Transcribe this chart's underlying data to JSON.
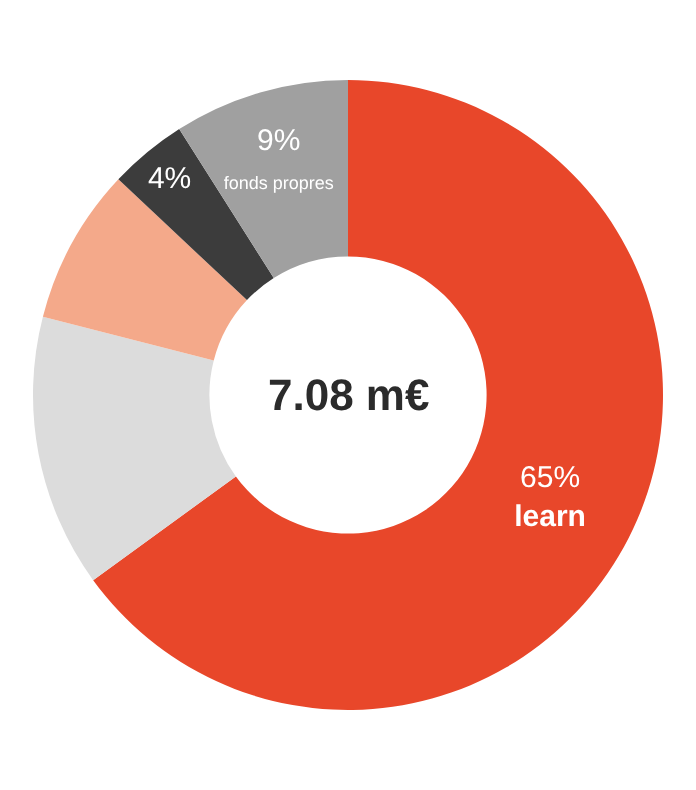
{
  "chart_data": {
    "type": "donut",
    "categories": [
      "learn",
      null,
      null,
      null,
      "fonds propres"
    ],
    "values": [
      65,
      14,
      8,
      4,
      9
    ],
    "value_labels": [
      "65%",
      null,
      null,
      "4%",
      "9%"
    ],
    "colors": [
      "#e8472a",
      "#dcdcdc",
      "#f4a98a",
      "#3c3c3c",
      "#a0a0a0"
    ],
    "annotations": [
      "7.08 m€"
    ],
    "legend": false
  }
}
